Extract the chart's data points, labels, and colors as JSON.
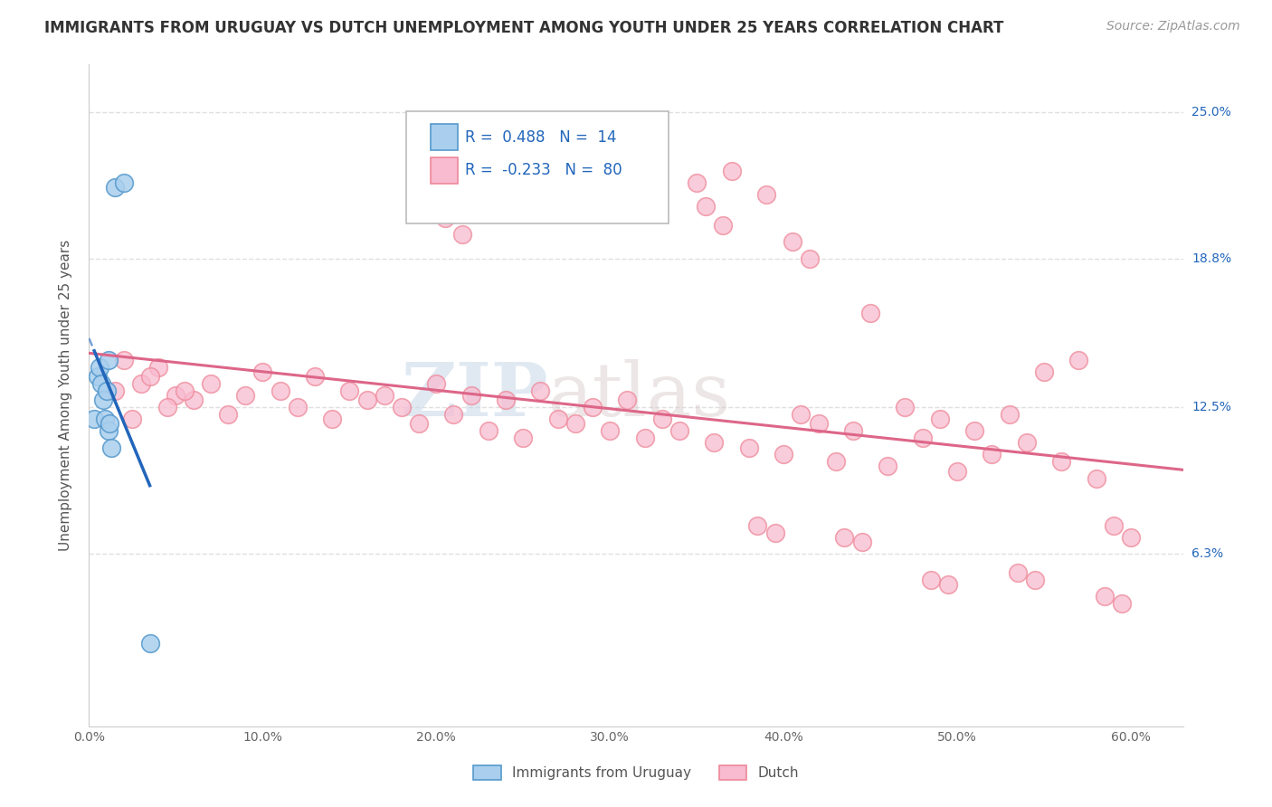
{
  "title": "IMMIGRANTS FROM URUGUAY VS DUTCH UNEMPLOYMENT AMONG YOUTH UNDER 25 YEARS CORRELATION CHART",
  "source": "Source: ZipAtlas.com",
  "xlabel_ticks": [
    "0.0%",
    "10.0%",
    "20.0%",
    "30.0%",
    "40.0%",
    "50.0%",
    "60.0%"
  ],
  "xlabel_vals": [
    0.0,
    10.0,
    20.0,
    30.0,
    40.0,
    50.0,
    60.0
  ],
  "ylabel_ticks": [
    "6.3%",
    "12.5%",
    "18.8%",
    "25.0%"
  ],
  "ylabel_vals": [
    6.3,
    12.5,
    18.8,
    25.0
  ],
  "xlim": [
    0.0,
    63.0
  ],
  "ylim": [
    -1.0,
    27.0
  ],
  "ylabel": "Unemployment Among Youth under 25 years",
  "legend_blue_r": "0.488",
  "legend_blue_n": "14",
  "legend_pink_r": "-0.233",
  "legend_pink_n": "80",
  "blue_fill": "#AACFEE",
  "pink_fill": "#F8BBD0",
  "blue_edge": "#5599CC",
  "pink_edge": "#EE8899",
  "blue_line_color": "#2266BB",
  "pink_line_color": "#DD6688",
  "blue_scatter": [
    [
      0.3,
      12.0
    ],
    [
      0.5,
      13.8
    ],
    [
      0.6,
      14.2
    ],
    [
      0.7,
      13.5
    ],
    [
      0.8,
      12.8
    ],
    [
      0.9,
      12.0
    ],
    [
      1.0,
      13.2
    ],
    [
      1.1,
      11.5
    ],
    [
      1.15,
      14.5
    ],
    [
      1.2,
      11.8
    ],
    [
      1.3,
      10.8
    ],
    [
      1.5,
      21.8
    ],
    [
      2.0,
      22.0
    ],
    [
      3.5,
      2.5
    ]
  ],
  "pink_scatter": [
    [
      1.5,
      13.2
    ],
    [
      2.0,
      14.5
    ],
    [
      2.5,
      12.0
    ],
    [
      3.0,
      13.5
    ],
    [
      4.0,
      14.2
    ],
    [
      5.0,
      13.0
    ],
    [
      6.0,
      12.8
    ],
    [
      7.0,
      13.5
    ],
    [
      8.0,
      12.2
    ],
    [
      9.0,
      13.0
    ],
    [
      10.0,
      14.0
    ],
    [
      11.0,
      13.2
    ],
    [
      12.0,
      12.5
    ],
    [
      13.0,
      13.8
    ],
    [
      14.0,
      12.0
    ],
    [
      15.0,
      13.2
    ],
    [
      16.0,
      12.8
    ],
    [
      17.0,
      13.0
    ],
    [
      18.0,
      12.5
    ],
    [
      19.0,
      11.8
    ],
    [
      20.0,
      13.5
    ],
    [
      21.0,
      12.2
    ],
    [
      22.0,
      13.0
    ],
    [
      23.0,
      11.5
    ],
    [
      24.0,
      12.8
    ],
    [
      25.0,
      11.2
    ],
    [
      26.0,
      13.2
    ],
    [
      27.0,
      12.0
    ],
    [
      28.0,
      11.8
    ],
    [
      29.0,
      12.5
    ],
    [
      30.0,
      11.5
    ],
    [
      31.0,
      12.8
    ],
    [
      32.0,
      11.2
    ],
    [
      33.0,
      12.0
    ],
    [
      34.0,
      11.5
    ],
    [
      35.0,
      22.0
    ],
    [
      36.0,
      11.0
    ],
    [
      37.0,
      22.5
    ],
    [
      38.0,
      10.8
    ],
    [
      39.0,
      21.5
    ],
    [
      40.0,
      10.5
    ],
    [
      41.0,
      12.2
    ],
    [
      42.0,
      11.8
    ],
    [
      43.0,
      10.2
    ],
    [
      44.0,
      11.5
    ],
    [
      45.0,
      16.5
    ],
    [
      46.0,
      10.0
    ],
    [
      47.0,
      12.5
    ],
    [
      48.0,
      11.2
    ],
    [
      49.0,
      12.0
    ],
    [
      50.0,
      9.8
    ],
    [
      51.0,
      11.5
    ],
    [
      52.0,
      10.5
    ],
    [
      53.0,
      12.2
    ],
    [
      54.0,
      11.0
    ],
    [
      55.0,
      14.0
    ],
    [
      56.0,
      10.2
    ],
    [
      57.0,
      14.5
    ],
    [
      58.0,
      9.5
    ],
    [
      59.0,
      7.5
    ],
    [
      60.0,
      7.0
    ],
    [
      38.5,
      7.5
    ],
    [
      39.5,
      7.2
    ],
    [
      43.5,
      7.0
    ],
    [
      44.5,
      6.8
    ],
    [
      48.5,
      5.2
    ],
    [
      49.5,
      5.0
    ],
    [
      53.5,
      5.5
    ],
    [
      54.5,
      5.2
    ],
    [
      58.5,
      4.5
    ],
    [
      59.5,
      4.2
    ],
    [
      20.5,
      20.5
    ],
    [
      21.5,
      19.8
    ],
    [
      35.5,
      21.0
    ],
    [
      36.5,
      20.2
    ],
    [
      40.5,
      19.5
    ],
    [
      41.5,
      18.8
    ],
    [
      3.5,
      13.8
    ],
    [
      4.5,
      12.5
    ],
    [
      5.5,
      13.2
    ]
  ],
  "watermark_zip": "ZIP",
  "watermark_atlas": "atlas",
  "background_color": "#FFFFFF",
  "grid_color": "#E0E0E0",
  "grid_style": "--",
  "title_fontsize": 12,
  "source_fontsize": 10,
  "ylabel_fontsize": 11,
  "tick_fontsize": 10,
  "legend_fontsize": 12,
  "watermark_fontsize": 60
}
